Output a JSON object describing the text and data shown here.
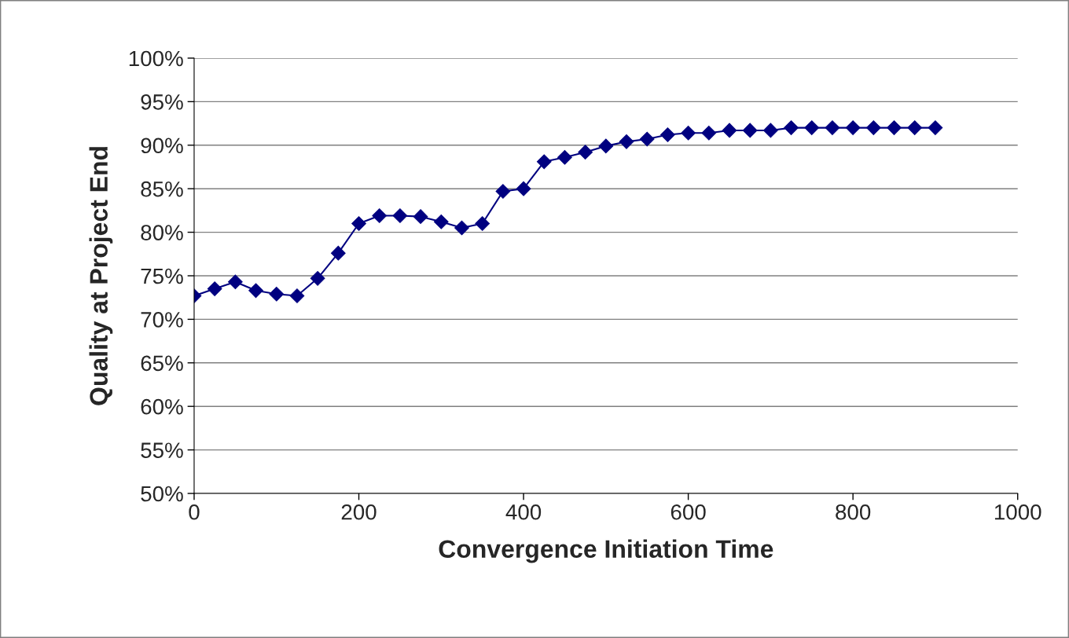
{
  "chart_data": {
    "type": "line",
    "xlabel": "Convergence Initiation Time",
    "ylabel": "Quality at Project End",
    "x": [
      0,
      25,
      50,
      75,
      100,
      125,
      150,
      175,
      200,
      225,
      250,
      275,
      300,
      325,
      350,
      375,
      400,
      425,
      450,
      475,
      500,
      525,
      550,
      575,
      600,
      625,
      650,
      675,
      700,
      725,
      750,
      775,
      800,
      825,
      850,
      875,
      900
    ],
    "series": [
      {
        "color": "#000080",
        "values": [
          72.7,
          73.5,
          74.3,
          73.3,
          72.9,
          72.7,
          74.7,
          77.6,
          81.0,
          81.9,
          81.9,
          81.8,
          81.2,
          80.5,
          81.0,
          84.7,
          85.0,
          88.1,
          88.6,
          89.2,
          89.9,
          90.4,
          90.7,
          91.2,
          91.4,
          91.4,
          91.7,
          91.7,
          91.7,
          92.0,
          92.0,
          92.0,
          92.0,
          92.0,
          92.0,
          92.0,
          92.0
        ]
      }
    ],
    "xlim": [
      0,
      1000
    ],
    "xticks": [
      0,
      200,
      400,
      600,
      800,
      1000
    ],
    "ylim": [
      50,
      100
    ],
    "yticks": [
      {
        "value": 50,
        "label": "50%"
      },
      {
        "value": 55,
        "label": "55%"
      },
      {
        "value": 60,
        "label": "60%"
      },
      {
        "value": 65,
        "label": "65%"
      },
      {
        "value": 70,
        "label": "70%"
      },
      {
        "value": 75,
        "label": "75%"
      },
      {
        "value": 80,
        "label": "80%"
      },
      {
        "value": 85,
        "label": "85%"
      },
      {
        "value": 90,
        "label": "90%"
      },
      {
        "value": 95,
        "label": "95%"
      },
      {
        "value": 100,
        "label": "100%"
      }
    ],
    "grid": "y",
    "marker": "diamond",
    "line_style": "solid"
  }
}
